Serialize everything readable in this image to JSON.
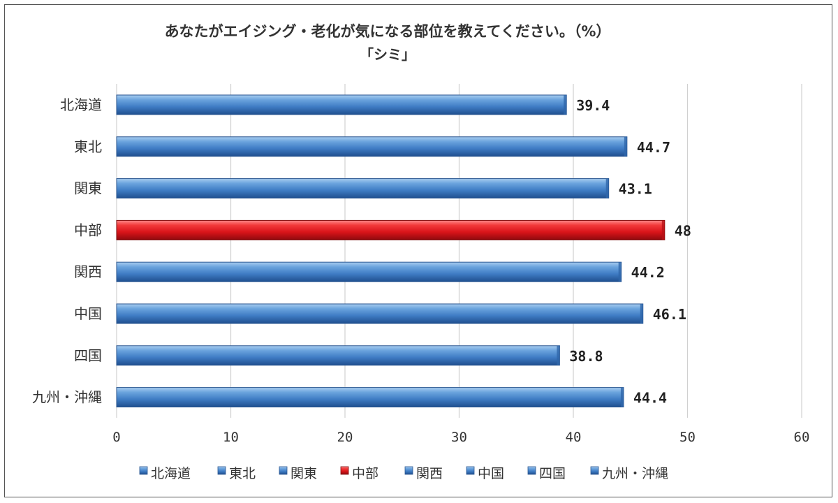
{
  "chart_data": {
    "type": "bar",
    "orientation": "horizontal",
    "title": "あなたがエイジング・老化が気になる部位を教えてください。（%）",
    "subtitle": "「シミ」",
    "categories": [
      "北海道",
      "東北",
      "関東",
      "中部",
      "関西",
      "中国",
      "四国",
      "九州・沖縄"
    ],
    "tick_labels": [
      "0",
      "10",
      "20",
      "30",
      "40",
      "50",
      "60"
    ],
    "series": [
      {
        "name": "",
        "values": [
          39.4,
          44.7,
          43.1,
          48,
          44.2,
          46.1,
          38.8,
          44.4
        ]
      }
    ],
    "data_labels": [
      "39.4",
      "44.7",
      "43.1",
      "48",
      "44.2",
      "46.1",
      "38.8",
      "44.4"
    ],
    "xlim": [
      0,
      60
    ],
    "grid": true,
    "legend_position": "bottom",
    "legend": [
      "北海道",
      "東北",
      "関東",
      "中部",
      "関西",
      "中国",
      "四国",
      "九州・沖縄"
    ],
    "bar_color": "#4a86c8",
    "highlight_category": "中部",
    "highlight_color": "#e0191c"
  }
}
